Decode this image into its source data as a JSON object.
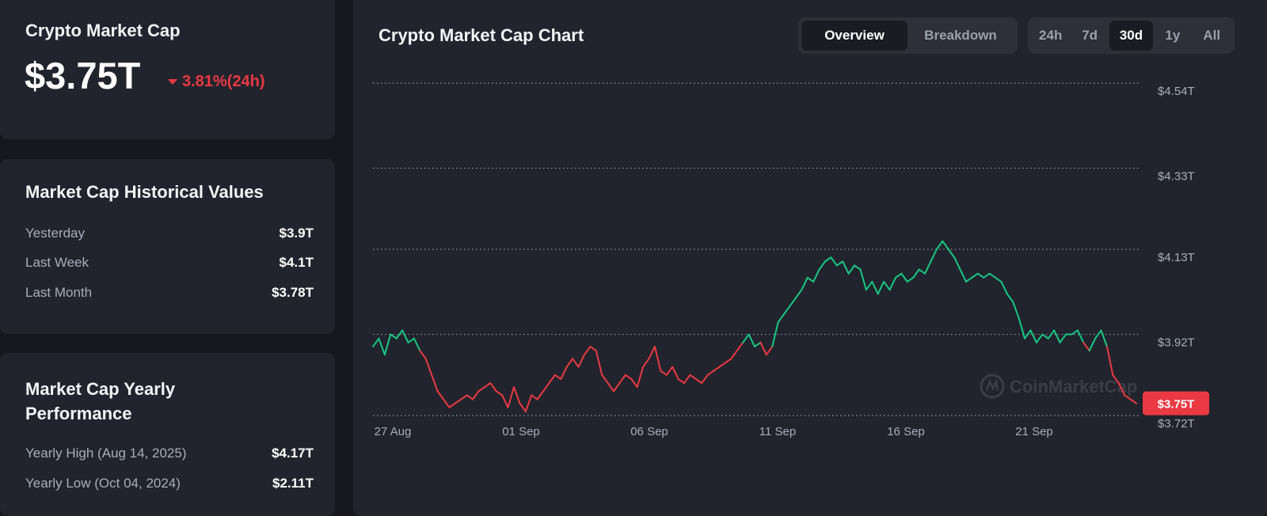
{
  "market_cap_card": {
    "title": "Crypto Market Cap",
    "value": "$3.75T",
    "change": "3.81%(24h)",
    "change_direction": "down",
    "change_color": "#ea3943"
  },
  "historical": {
    "title": "Market Cap Historical Values",
    "rows": [
      {
        "label": "Yesterday",
        "value": "$3.9T"
      },
      {
        "label": "Last Week",
        "value": "$4.1T"
      },
      {
        "label": "Last Month",
        "value": "$3.78T"
      }
    ]
  },
  "yearly": {
    "title": "Market Cap Yearly Performance",
    "rows": [
      {
        "label": "Yearly High (Aug 14, 2025)",
        "value": "$4.17T"
      },
      {
        "label": "Yearly Low (Oct 04, 2024)",
        "value": "$2.11T"
      }
    ]
  },
  "chart_panel": {
    "title": "Crypto Market Cap Chart",
    "view_tabs": [
      "Overview",
      "Breakdown"
    ],
    "active_view": "Overview",
    "range_tabs": [
      "24h",
      "7d",
      "30d",
      "1y",
      "All"
    ],
    "active_range": "30d",
    "watermark": "CoinMarketCap",
    "current_price_label": "$3.75T"
  },
  "colors": {
    "up": "#16c784",
    "down": "#ea3943",
    "background": "#17181f",
    "card": "#22242d"
  },
  "chart_data": {
    "type": "line",
    "title": "Crypto Market Cap Chart",
    "xlabel": "",
    "ylabel": "",
    "x_ticks": [
      "27 Aug",
      "01 Sep",
      "06 Sep",
      "11 Sep",
      "16 Sep",
      "21 Sep"
    ],
    "y_ticks": [
      "$4.54T",
      "$4.33T",
      "$4.13T",
      "$3.92T",
      "$3.72T"
    ],
    "ylim": [
      3.72,
      4.54
    ],
    "y_axis_position": "right",
    "grid": "horizontal dotted",
    "color_mode": "green above start value, red below",
    "baseline": 3.89,
    "series": [
      {
        "values": [
          3.89,
          3.91,
          3.87,
          3.92,
          3.91,
          3.93,
          3.9,
          3.91,
          3.88,
          3.86,
          3.82,
          3.78,
          3.76,
          3.74,
          3.75,
          3.76,
          3.77,
          3.76,
          3.78,
          3.79,
          3.8,
          3.78,
          3.77,
          3.74,
          3.79,
          3.75,
          3.73,
          3.77,
          3.76,
          3.78,
          3.8,
          3.82,
          3.81,
          3.84,
          3.86,
          3.84,
          3.87,
          3.89,
          3.88,
          3.82,
          3.8,
          3.78,
          3.8,
          3.82,
          3.81,
          3.79,
          3.84,
          3.86,
          3.89,
          3.83,
          3.82,
          3.84,
          3.81,
          3.8,
          3.82,
          3.81,
          3.8,
          3.82,
          3.83,
          3.84,
          3.85,
          3.86,
          3.88,
          3.9,
          3.92,
          3.89,
          3.9,
          3.87,
          3.89,
          3.95,
          3.97,
          3.99,
          4.01,
          4.03,
          4.06,
          4.05,
          4.08,
          4.1,
          4.11,
          4.09,
          4.1,
          4.07,
          4.09,
          4.08,
          4.03,
          4.05,
          4.02,
          4.05,
          4.03,
          4.06,
          4.07,
          4.05,
          4.06,
          4.08,
          4.07,
          4.1,
          4.13,
          4.15,
          4.13,
          4.11,
          4.08,
          4.05,
          4.06,
          4.07,
          4.06,
          4.07,
          4.06,
          4.05,
          4.02,
          4.0,
          3.96,
          3.91,
          3.93,
          3.9,
          3.92,
          3.91,
          3.93,
          3.9,
          3.92,
          3.92,
          3.93,
          3.9,
          3.88,
          3.91,
          3.93,
          3.89,
          3.82,
          3.8,
          3.77,
          3.76,
          3.75
        ]
      }
    ]
  }
}
